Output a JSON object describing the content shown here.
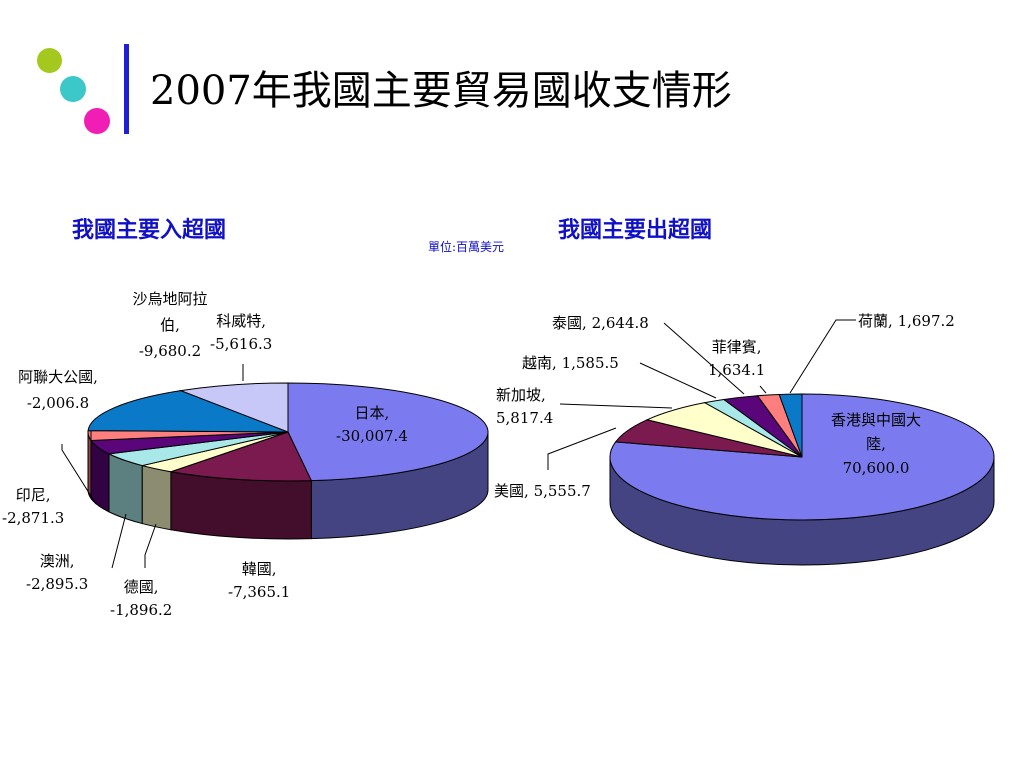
{
  "slide": {
    "title": "2007年我國主要貿易國收支情形",
    "unit_note": "單位:百萬美元",
    "colors": {
      "bar": "#1f1fd6",
      "dot1": "#a4c81e",
      "dot2": "#3cc8c8",
      "dot3": "#f01eb4"
    }
  },
  "chart_data": [
    {
      "type": "pie",
      "title": "我國主要入超國",
      "slices": [
        {
          "label": "日本",
          "value": -30007.4,
          "value_text": "-30,007.4",
          "color": "#7b7bef"
        },
        {
          "label": "韓國",
          "value": -7365.1,
          "value_text": "-7,365.1",
          "color": "#7a1a4e"
        },
        {
          "label": "德國",
          "value": -1896.2,
          "value_text": "-1,896.2",
          "color": "#ffffcc"
        },
        {
          "label": "澳洲",
          "value": -2895.3,
          "value_text": "-2,895.3",
          "color": "#a8e8e8"
        },
        {
          "label": "印尼",
          "value": -2871.3,
          "value_text": "-2,871.3",
          "color": "#5a067a"
        },
        {
          "label": "阿聯大公國",
          "value": -2006.8,
          "value_text": "-2,006.8",
          "color": "#ff7f7f"
        },
        {
          "label": "沙烏地阿拉伯",
          "value": -9680.2,
          "value_text": "-9,680.2",
          "color": "#0a7ac8"
        },
        {
          "label": "科威特",
          "value": -5616.3,
          "value_text": "-5,616.3",
          "color": "#c8c8f8"
        }
      ]
    },
    {
      "type": "pie",
      "title": "我國主要出超國",
      "slices": [
        {
          "label": "香港與中國大陸",
          "value": 70600.0,
          "value_text": "70,600.0",
          "color": "#7b7bef"
        },
        {
          "label": "美國",
          "value": 5555.7,
          "value_text": "5,555.7",
          "color": "#7a1a4e"
        },
        {
          "label": "新加坡",
          "value": 5817.4,
          "value_text": "5,817.4",
          "color": "#ffffcc"
        },
        {
          "label": "越南",
          "value": 1585.5,
          "value_text": "1,585.5",
          "color": "#a8e8e8"
        },
        {
          "label": "泰國",
          "value": 2644.8,
          "value_text": "2,644.8",
          "color": "#5a067a"
        },
        {
          "label": "菲律賓",
          "value": 1634.1,
          "value_text": "1,634.1",
          "color": "#ff7f7f"
        },
        {
          "label": "荷蘭",
          "value": 1697.2,
          "value_text": "1,697.2",
          "color": "#0a7ac8"
        }
      ]
    }
  ]
}
